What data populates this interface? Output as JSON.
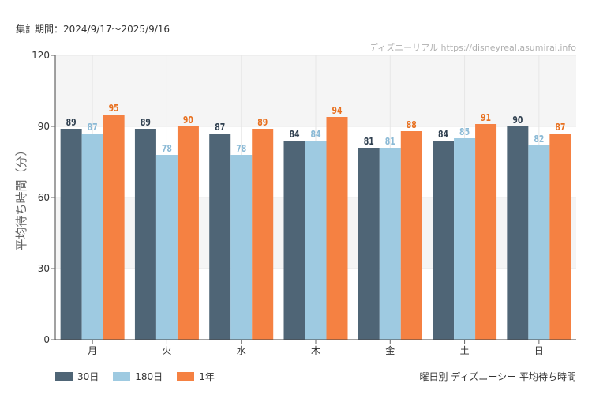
{
  "period": "集計期間：2024/9/17〜2025/9/16",
  "source": "ディズニーリアル https://disneyreal.asumirai.info",
  "caption": "曜日別 ディズニーシー 平均待ち時間",
  "chart_data": {
    "type": "bar",
    "ylabel": "平均待ち時間（分）",
    "ylim": [
      0,
      120
    ],
    "yticks": [
      0,
      30,
      60,
      90,
      120
    ],
    "grid": true,
    "legend_position": "bottom-left",
    "categories": [
      "月",
      "火",
      "水",
      "木",
      "金",
      "土",
      "日"
    ],
    "series": [
      {
        "name": "30日",
        "color": "#4f6576",
        "label_color": "#2f3f4f",
        "values": [
          89,
          89,
          87,
          84,
          81,
          84,
          90
        ]
      },
      {
        "name": "180日",
        "color": "#9ecae1",
        "label_color": "#8bbad6",
        "values": [
          87,
          78,
          78,
          84,
          81,
          85,
          82
        ]
      },
      {
        "name": "1年",
        "color": "#f58142",
        "label_color": "#e8701f",
        "values": [
          95,
          90,
          89,
          94,
          88,
          91,
          87
        ]
      }
    ]
  }
}
